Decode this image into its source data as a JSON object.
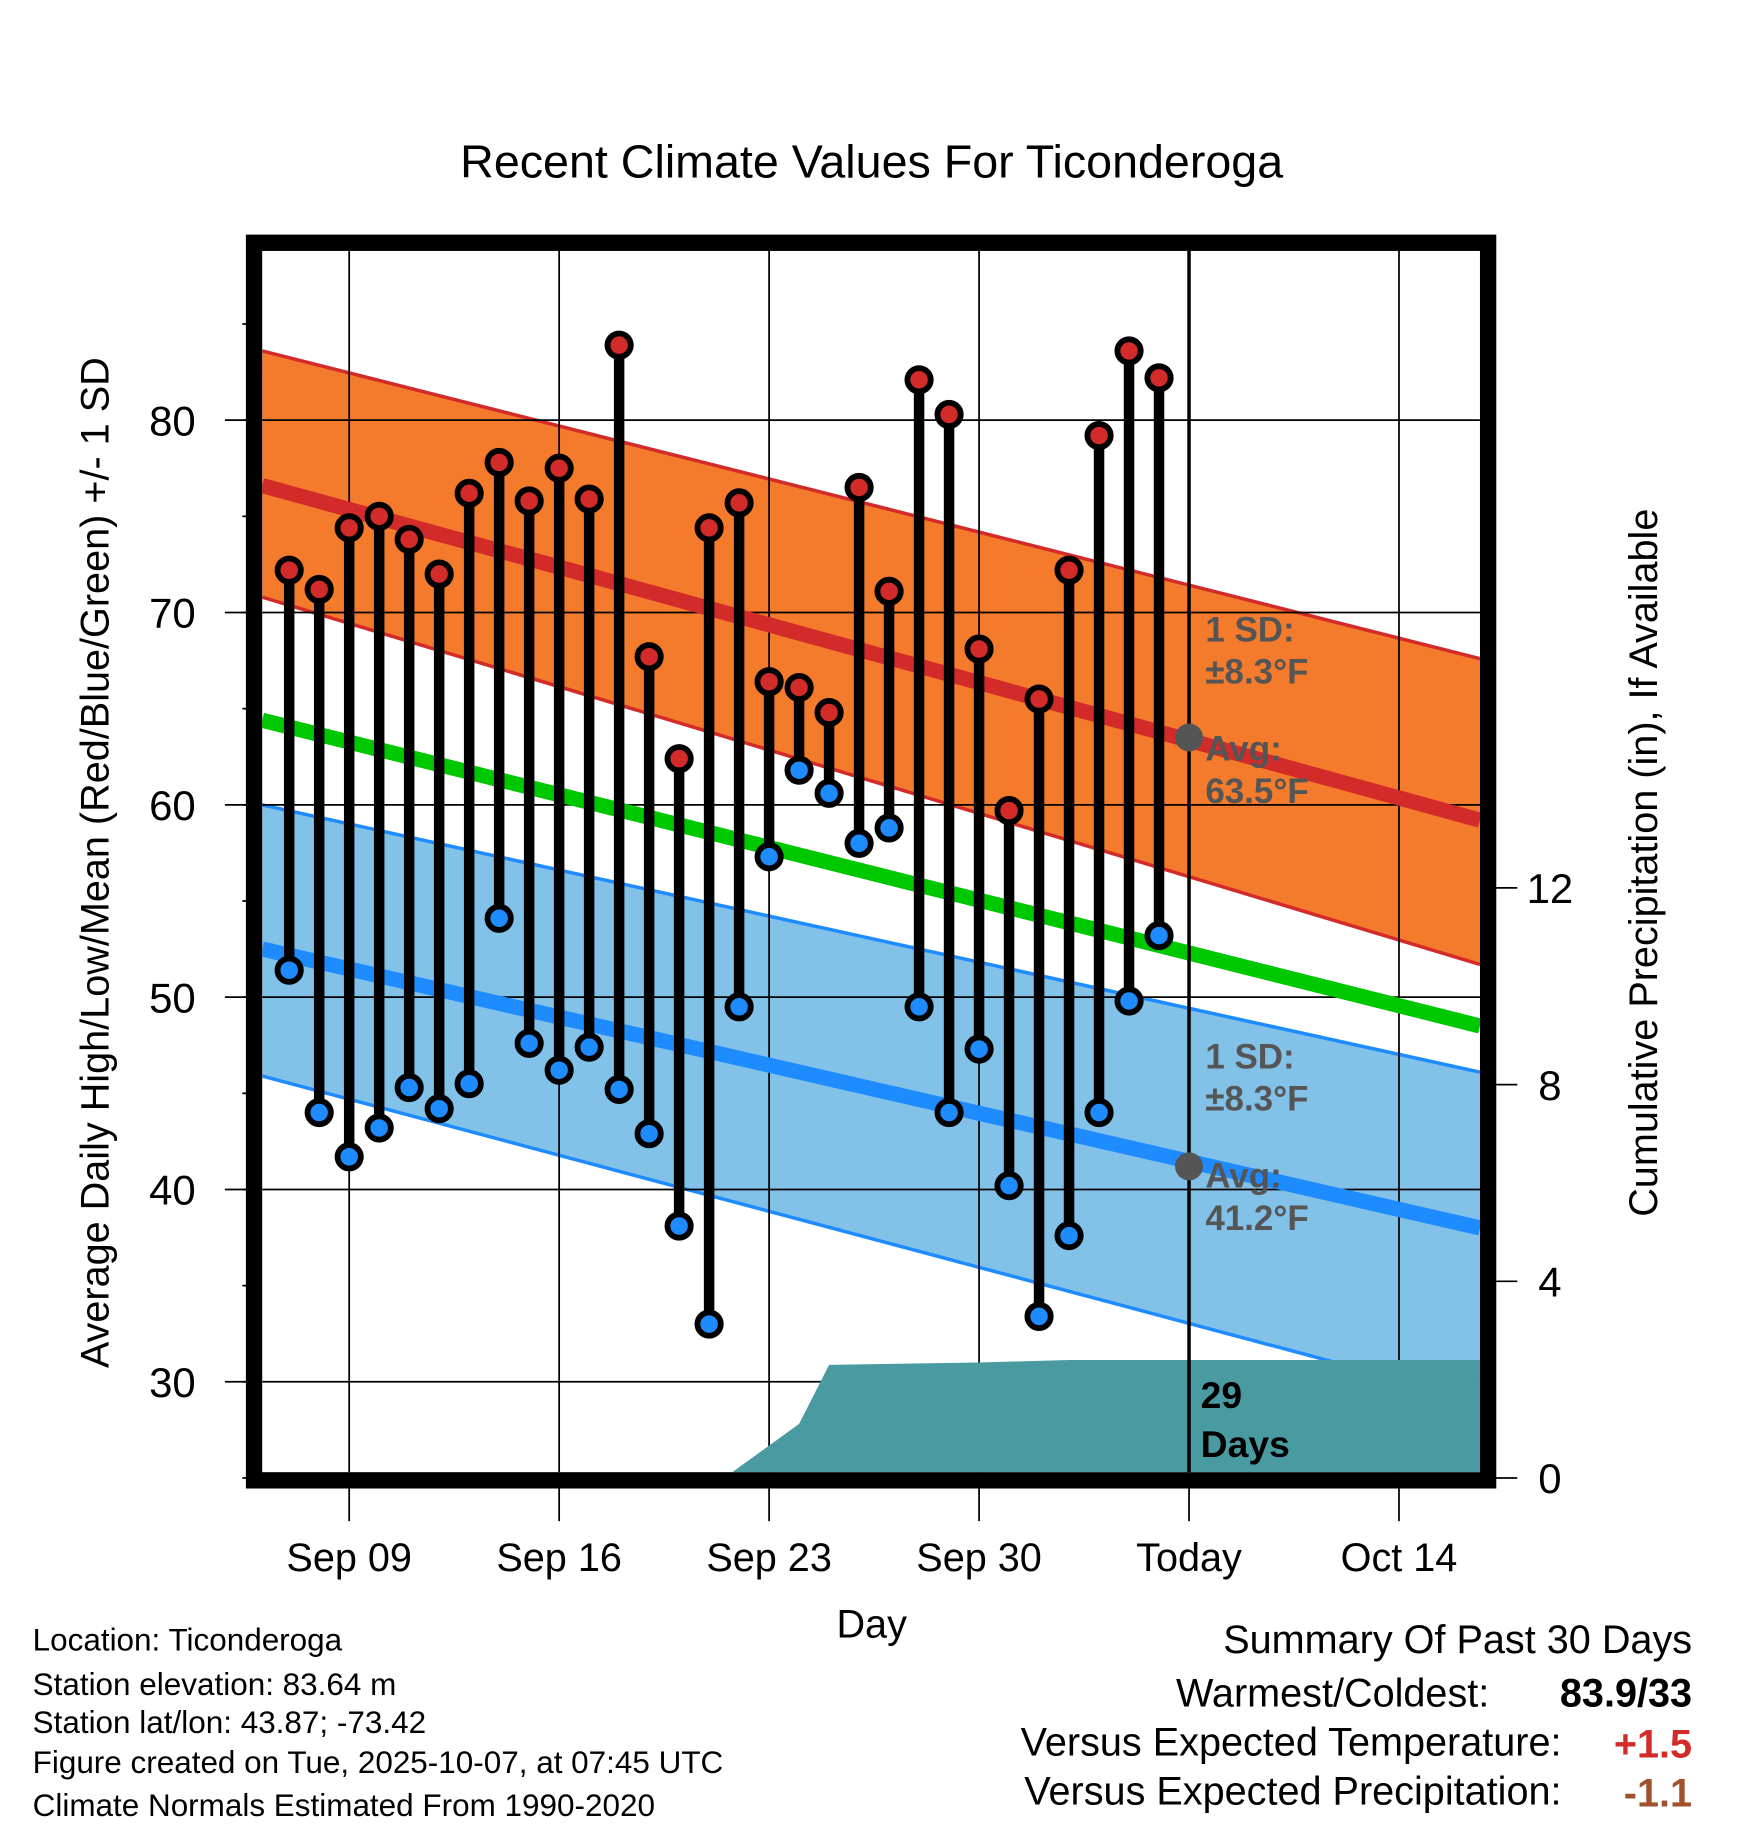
{
  "chart_data": {
    "type": "line",
    "title": "Recent Climate Values For Ticonderoga",
    "xlabel": "Day",
    "ylabel": "Average Daily High/Low/Mean (Red/Blue/Green) +/- 1 SD",
    "y2label": "Cumulative Precipitation (in), If Available",
    "x_unit": "day of month counted from Sep 1 (Oct 1 = 31)",
    "xlim": [
      6.1,
      46.7
    ],
    "ylim": [
      25.3,
      88.8
    ],
    "y2lim": [
      0,
      24.9
    ],
    "grid": true,
    "x_ticks": [
      {
        "x": 9,
        "label": "Sep 09"
      },
      {
        "x": 16,
        "label": "Sep 16"
      },
      {
        "x": 23,
        "label": "Sep 23"
      },
      {
        "x": 30,
        "label": "Sep 30"
      },
      {
        "x": 37,
        "label": "Today"
      },
      {
        "x": 44,
        "label": "Oct 14"
      }
    ],
    "y_ticks": [
      30,
      40,
      50,
      60,
      70,
      80
    ],
    "y2_ticks": [
      0,
      4,
      8,
      12
    ],
    "today_x": 37,
    "days": [
      7,
      8,
      9,
      10,
      11,
      12,
      13,
      14,
      15,
      16,
      17,
      18,
      19,
      20,
      21,
      22,
      23,
      24,
      25,
      26,
      27,
      28,
      29,
      30,
      31,
      32,
      33,
      34,
      35,
      36
    ],
    "highs": [
      72.2,
      71.2,
      74.4,
      75.0,
      73.8,
      72.0,
      76.2,
      77.8,
      75.8,
      77.5,
      75.9,
      83.9,
      67.7,
      62.4,
      74.4,
      75.7,
      66.4,
      66.1,
      64.8,
      76.5,
      71.1,
      82.1,
      80.3,
      68.1,
      59.7,
      65.5,
      72.2,
      79.2,
      83.6,
      82.2
    ],
    "lows": [
      51.4,
      44.0,
      41.7,
      43.2,
      45.3,
      44.2,
      45.5,
      54.1,
      47.6,
      46.2,
      47.4,
      45.2,
      42.9,
      38.1,
      33.0,
      49.5,
      57.3,
      61.8,
      60.6,
      58.0,
      58.8,
      49.5,
      44.0,
      47.3,
      40.2,
      33.4,
      37.6,
      44.0,
      49.8,
      53.2
    ],
    "normals": {
      "x": [
        6.1,
        46.7
      ],
      "high_mean": [
        76.6,
        59.2
      ],
      "high_upper": [
        83.6,
        67.6
      ],
      "high_lower": [
        70.8,
        51.7
      ],
      "mean": [
        64.4,
        48.5
      ],
      "low_mean": [
        52.5,
        38.0
      ],
      "low_upper": [
        60.0,
        46.1
      ],
      "low_lower": [
        45.9,
        29.0
      ]
    },
    "precip_cumulative": {
      "x": [
        6.1,
        21.5,
        24,
        25,
        30,
        33,
        46.7
      ],
      "y": [
        0,
        0,
        1.1,
        2.3,
        2.35,
        2.4,
        2.4
      ]
    },
    "annotations": {
      "high_sd_label": "1 SD:",
      "high_sd_value": "±8.3°F",
      "high_avg_label": "Avg:",
      "high_avg_value": "63.5°F",
      "low_sd_label": "1 SD:",
      "low_sd_value": "±8.3°F",
      "low_avg_label": "Avg:",
      "low_avg_value": "41.2°F",
      "days_count": "29",
      "days_label": "Days",
      "high_avg_today": 63.5,
      "low_avg_today": 41.2
    },
    "colors": {
      "high_band": "#f47a2c",
      "high_line": "#d32a2a",
      "low_band": "#82c1e8",
      "low_line": "#1e8cff",
      "mean_line": "#00c800",
      "precip": "#4a9aa2",
      "annotation": "#555555"
    }
  },
  "footer": {
    "location": "Location: Ticonderoga",
    "elevation": "Station elevation: 83.64 m",
    "latlon": "Station lat/lon: 43.87; -73.42",
    "created": "Figure created on Tue, 2025-10-07, at 07:45 UTC",
    "normals": "Climate Normals Estimated From 1990-2020"
  },
  "summary": {
    "title": "Summary Of Past 30 Days",
    "warmest_label": "Warmest/Coldest:",
    "warmest_value": "83.9/33",
    "temp_label": "Versus Expected Temperature:",
    "temp_value": "+1.5",
    "temp_color": "#d32a2a",
    "precip_label": "Versus Expected Precipitation:",
    "precip_value": "-1.1",
    "precip_color": "#a0522d"
  }
}
